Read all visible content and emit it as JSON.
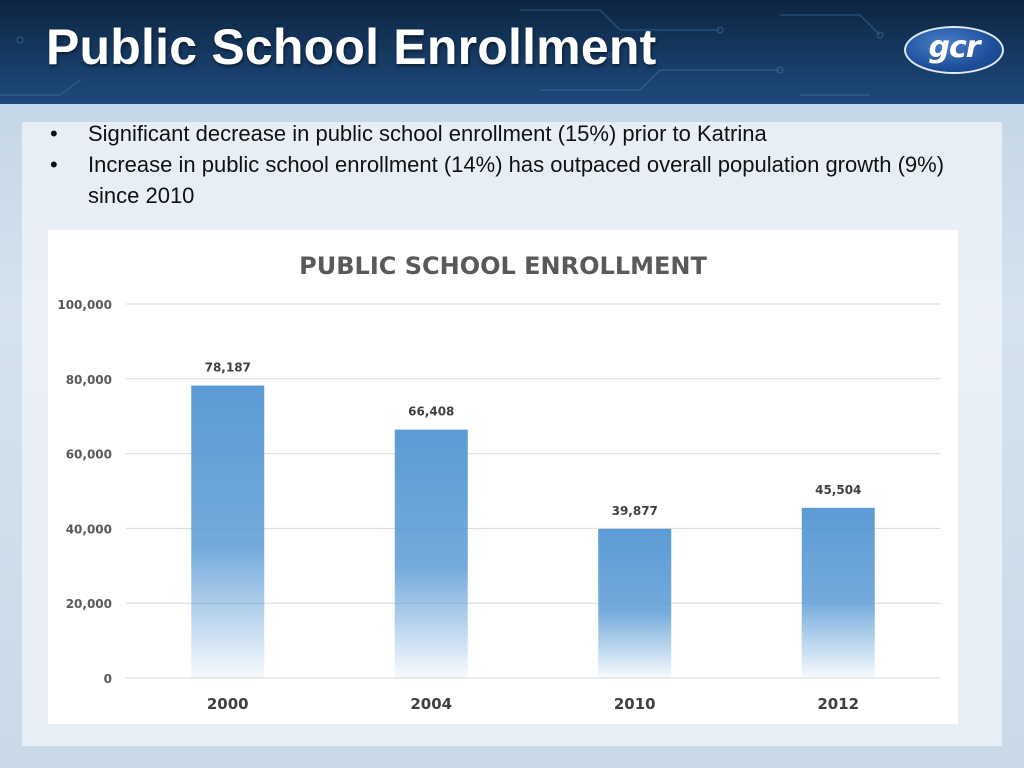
{
  "header": {
    "title": "Public School Enrollment",
    "logo_text": "gcr"
  },
  "bullets": [
    "Significant decrease in public school enrollment (15%) prior to Katrina",
    "Increase in public school enrollment (14%) has outpaced overall population growth (9%) since 2010"
  ],
  "chart_data": {
    "type": "bar",
    "title": "PUBLIC SCHOOL ENROLLMENT",
    "categories": [
      "2000",
      "2004",
      "2010",
      "2012"
    ],
    "values": [
      78187,
      66408,
      39877,
      45504
    ],
    "value_labels": [
      "78,187",
      "66,408",
      "39,877",
      "45,504"
    ],
    "ylim": [
      0,
      100000
    ],
    "yticks": [
      0,
      20000,
      40000,
      60000,
      80000,
      100000
    ],
    "ytick_labels": [
      "0",
      "20,000",
      "40,000",
      "60,000",
      "80,000",
      "100,000"
    ],
    "xlabel": "",
    "ylabel": "",
    "grid": true,
    "bar_color": "#5b9bd5"
  }
}
